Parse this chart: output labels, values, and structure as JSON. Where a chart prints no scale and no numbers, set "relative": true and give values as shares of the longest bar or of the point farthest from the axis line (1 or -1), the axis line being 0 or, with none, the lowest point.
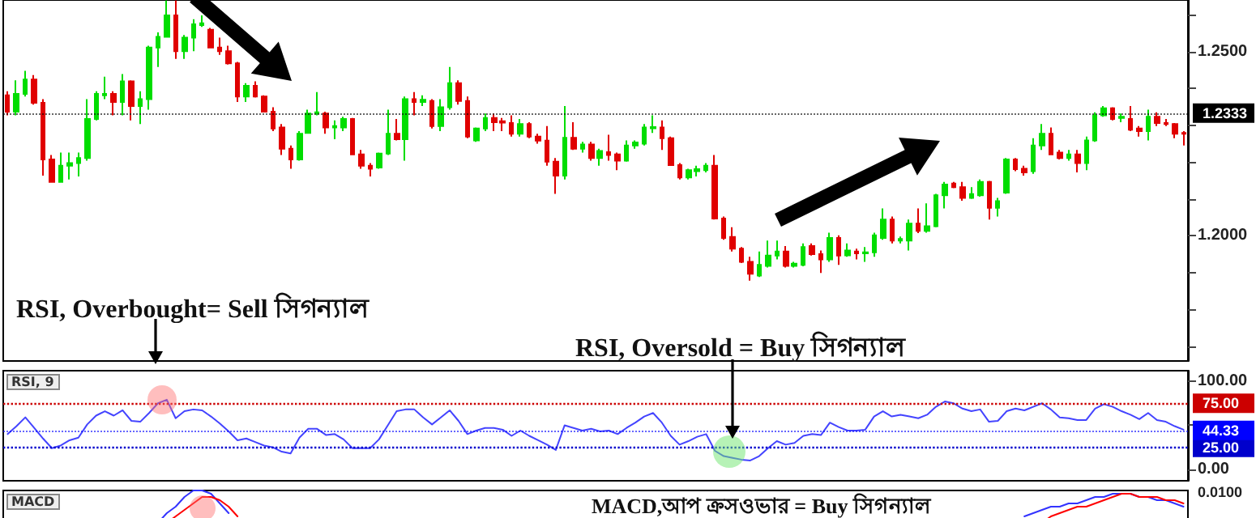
{
  "chart_data": [
    {
      "type": "candlestick",
      "categories": [
        null,
        null,
        null,
        null,
        null,
        null,
        null,
        null,
        null,
        null,
        null,
        null,
        null,
        null,
        null,
        null,
        null,
        null,
        null,
        null,
        null,
        null,
        null,
        null,
        null,
        null,
        null,
        null,
        null,
        null,
        null,
        null,
        null,
        null,
        null,
        null,
        null,
        null,
        null,
        null,
        null,
        null,
        null,
        null,
        null,
        null,
        null,
        null,
        null,
        null,
        null,
        null,
        null,
        null,
        null,
        null,
        null,
        null,
        null,
        null,
        null,
        null,
        null,
        null,
        null,
        null,
        null,
        null,
        null,
        null,
        null,
        null,
        null,
        null,
        null,
        null,
        null,
        null,
        null,
        null,
        null,
        null,
        null,
        null,
        null,
        null,
        null,
        null,
        null,
        null,
        null,
        null,
        null,
        null,
        null,
        null,
        null,
        null,
        null,
        null,
        null,
        null,
        null,
        null,
        null,
        null,
        null,
        null,
        null,
        null,
        null,
        null,
        null,
        null,
        null,
        null,
        null,
        null,
        null,
        null,
        null,
        null,
        null,
        null,
        null,
        null,
        null,
        null,
        null,
        null,
        null,
        null,
        null,
        null
      ],
      "colors": [
        "#e00000",
        "#00dd00",
        "#00dd00",
        "#e00000",
        "#e00000",
        "#e00000",
        "#00dd00",
        "#00dd00",
        "#00dd00",
        "#00dd00",
        "#00dd00",
        "#00dd00",
        "#e00000",
        "#00dd00",
        "#e00000",
        "#00dd00",
        "#00dd00",
        "#00dd00",
        "#00dd00",
        "#e00000",
        "#00dd00",
        "#00dd00",
        "#00dd00",
        "#e00000",
        "#e00000",
        "#e00000",
        "#e00000",
        "#00dd00",
        "#e00000",
        "#e00000",
        "#e00000",
        "#e00000",
        "#e00000",
        "#00dd00",
        "#00dd00",
        "#00dd00",
        "#e00000",
        "#00dd00",
        "#00dd00",
        "#e00000",
        "#e00000",
        "#e00000",
        "#00dd00",
        "#00dd00",
        "#e00000",
        "#00dd00",
        "#e00000",
        "#00dd00",
        "#e00000",
        "#00dd00",
        "#00dd00",
        "#e00000",
        "#e00000",
        "#00dd00",
        "#00dd00",
        "#e00000",
        "#e00000",
        "#e00000",
        "#00dd00",
        "#e00000",
        "#e00000",
        "#e00000",
        "#e00000",
        "#00dd00",
        "#e00000",
        "#00dd00",
        "#e00000",
        "#00dd00",
        "#e00000",
        "#e00000",
        "#00dd00",
        "#00dd00",
        "#00dd00",
        "#00dd00",
        "#e00000",
        "#e00000",
        "#e00000",
        "#00dd00",
        "#00dd00",
        "#00dd00",
        "#e00000",
        "#e00000",
        "#e00000",
        "#e00000",
        "#e00000",
        "#00dd00",
        "#00dd00",
        "#00dd00",
        "#e00000",
        "#00dd00",
        "#00dd00",
        "#e00000",
        "#e00000",
        "#00dd00",
        "#e00000",
        "#00dd00",
        "#e00000",
        "#00dd00",
        "#00dd00",
        "#00dd00",
        "#e00000",
        "#00dd00",
        "#00dd00",
        "#e00000",
        "#00dd00",
        "#00dd00",
        "#00dd00",
        "#e00000",
        "#e00000",
        "#00dd00",
        "#00dd00",
        "#e00000",
        "#00dd00",
        "#00dd00",
        "#e00000",
        "#e00000",
        "#00dd00",
        "#00dd00",
        "#e00000",
        "#e00000",
        "#00dd00",
        "#e00000",
        "#00dd00",
        "#00dd00",
        "#00dd00",
        "#e00000",
        "#00dd00",
        "#e00000",
        "#e00000",
        "#00dd00",
        "#e00000",
        "#e00000",
        "#e00000",
        "#e00000"
      ],
      "ohlc": [
        [
          1.2381,
          1.2392,
          1.2327,
          1.2337
        ],
        [
          1.2337,
          1.2422,
          1.2327,
          1.2385
        ],
        [
          1.2385,
          1.2448,
          1.2378,
          1.2424
        ],
        [
          1.2424,
          1.2436,
          1.2356,
          1.2361
        ],
        [
          1.2361,
          1.2371,
          1.2163,
          1.2207
        ],
        [
          1.2207,
          1.2219,
          1.2146,
          1.2146
        ],
        [
          1.2146,
          1.2226,
          1.2146,
          1.219
        ],
        [
          1.219,
          1.2226,
          1.2153,
          1.2197
        ],
        [
          1.2197,
          1.2226,
          1.2161,
          1.2211
        ],
        [
          1.2211,
          1.2371,
          1.2204,
          1.2317
        ],
        [
          1.2317,
          1.2392,
          1.2313,
          1.2385
        ],
        [
          1.2381,
          1.2432,
          1.2371,
          1.2385
        ],
        [
          1.2385,
          1.2392,
          1.2327,
          1.2363
        ],
        [
          1.2363,
          1.2439,
          1.2327,
          1.2419
        ],
        [
          1.2419,
          1.2422,
          1.2313,
          1.2352
        ],
        [
          1.2352,
          1.2392,
          1.2303,
          1.2371
        ],
        [
          1.2371,
          1.2516,
          1.2342,
          1.2511
        ],
        [
          1.2511,
          1.2552,
          1.2458,
          1.254
        ],
        [
          1.254,
          1.2639,
          1.2538,
          1.2598
        ],
        [
          1.2598,
          1.2639,
          1.248,
          1.2501
        ],
        [
          1.2501,
          1.2545,
          1.248,
          1.2538
        ],
        [
          1.2538,
          1.2588,
          1.2501,
          1.2574
        ],
        [
          1.2572,
          1.2598,
          1.2567,
          1.2577
        ],
        [
          1.2559,
          1.2564,
          1.2509,
          1.2511
        ],
        [
          1.2511,
          1.2538,
          1.2491,
          1.2501
        ],
        [
          1.2501,
          1.2516,
          1.2465,
          1.2468
        ],
        [
          1.2468,
          1.2472,
          1.2363,
          1.2378
        ],
        [
          1.2378,
          1.2414,
          1.2363,
          1.2407
        ],
        [
          1.2407,
          1.2419,
          1.2375,
          1.2378
        ],
        [
          1.2378,
          1.2381,
          1.2335,
          1.2337
        ],
        [
          1.2337,
          1.2349,
          1.2284,
          1.2291
        ],
        [
          1.2294,
          1.2303,
          1.2219,
          1.2236
        ],
        [
          1.2236,
          1.2245,
          1.2182,
          1.2207
        ],
        [
          1.2207,
          1.2284,
          1.2204,
          1.2277
        ],
        [
          1.2279,
          1.2342,
          1.2277,
          1.2332
        ],
        [
          1.2332,
          1.239,
          1.2327,
          1.2335
        ],
        [
          1.2332,
          1.2337,
          1.2277,
          1.2294
        ],
        [
          1.2294,
          1.2313,
          1.2262,
          1.2298
        ],
        [
          1.2294,
          1.2323,
          1.2284,
          1.2317
        ],
        [
          1.2317,
          1.232,
          1.2219,
          1.2221
        ],
        [
          1.2221,
          1.2233,
          1.2182,
          1.219
        ],
        [
          1.219,
          1.2197,
          1.2161,
          1.2182
        ],
        [
          1.2185,
          1.2226,
          1.2182,
          1.2223
        ],
        [
          1.2223,
          1.2342,
          1.2219,
          1.2277
        ],
        [
          1.2277,
          1.2317,
          1.2259,
          1.2262
        ],
        [
          1.2262,
          1.2378,
          1.2204,
          1.2371
        ],
        [
          1.2371,
          1.239,
          1.2327,
          1.2363
        ],
        [
          1.2363,
          1.2381,
          1.2352,
          1.2369
        ],
        [
          1.2366,
          1.2371,
          1.2291,
          1.2298
        ],
        [
          1.2298,
          1.2371,
          1.2284,
          1.2349
        ],
        [
          1.2349,
          1.2458,
          1.2342,
          1.2414
        ],
        [
          1.2414,
          1.2422,
          1.2356,
          1.2366
        ],
        [
          1.2366,
          1.2378,
          1.2265,
          1.2269
        ],
        [
          1.2259,
          1.2294,
          1.2255,
          1.2291
        ],
        [
          1.2291,
          1.2332,
          1.2284,
          1.232
        ],
        [
          1.232,
          1.2332,
          1.2284,
          1.2308
        ],
        [
          1.2311,
          1.232,
          1.2284,
          1.2307
        ],
        [
          1.2306,
          1.2327,
          1.2269,
          1.2277
        ],
        [
          1.2277,
          1.2317,
          1.2269,
          1.2303
        ],
        [
          1.2303,
          1.2308,
          1.2265,
          1.2269
        ],
        [
          1.2269,
          1.2277,
          1.225,
          1.2258
        ],
        [
          1.2258,
          1.2298,
          1.219,
          1.2201
        ],
        [
          1.2201,
          1.2211,
          1.2114,
          1.2163
        ],
        [
          1.2163,
          1.2352,
          1.2153,
          1.2266
        ],
        [
          1.2266,
          1.2308,
          1.2233,
          1.2236
        ],
        [
          1.2236,
          1.2255,
          1.2226,
          1.2248
        ],
        [
          1.2248,
          1.2255,
          1.2204,
          1.2211
        ],
        [
          1.2211,
          1.2236,
          1.219,
          1.223
        ],
        [
          1.2227,
          1.2274,
          1.2204,
          1.2219
        ],
        [
          1.2221,
          1.2226,
          1.2178,
          1.2204
        ],
        [
          1.2204,
          1.2259,
          1.2201,
          1.2245
        ],
        [
          1.2245,
          1.2259,
          1.2236,
          1.2253
        ],
        [
          1.225,
          1.2303,
          1.2245,
          1.2294
        ],
        [
          1.2292,
          1.2327,
          1.2279,
          1.2295
        ],
        [
          1.2294,
          1.2313,
          1.2233,
          1.2265
        ],
        [
          1.2265,
          1.2269,
          1.219,
          1.2192
        ],
        [
          1.2192,
          1.2197,
          1.2153,
          1.2158
        ],
        [
          1.2158,
          1.2182,
          1.2153,
          1.2178
        ],
        [
          1.2175,
          1.219,
          1.2161,
          1.2181
        ],
        [
          1.2178,
          1.2197,
          1.2172,
          1.219
        ],
        [
          1.219,
          1.2219,
          1.2044,
          1.2047
        ],
        [
          1.2047,
          1.2052,
          1.1989,
          1.1994
        ],
        [
          1.1997,
          1.2023,
          1.1957,
          1.1965
        ],
        [
          1.1965,
          1.1969,
          1.1926,
          1.1929
        ],
        [
          1.1929,
          1.1943,
          1.1878,
          1.1897
        ],
        [
          1.1892,
          1.1957,
          1.1888,
          1.1921
        ],
        [
          1.1918,
          1.1987,
          1.1914,
          1.1946
        ],
        [
          1.1946,
          1.1987,
          1.1936,
          1.1957
        ],
        [
          1.1957,
          1.1972,
          1.1914,
          1.1918
        ],
        [
          1.1918,
          1.1929,
          1.1914,
          1.1924
        ],
        [
          1.1921,
          1.1979,
          1.1917,
          1.1969
        ],
        [
          1.1972,
          1.1979,
          1.1946,
          1.195
        ],
        [
          1.195,
          1.196,
          1.1899,
          1.1936
        ],
        [
          1.1936,
          1.2008,
          1.1929,
          1.1994
        ],
        [
          1.1994,
          1.2001,
          1.1921,
          1.1946
        ],
        [
          1.1947,
          1.1979,
          1.1943,
          1.196
        ],
        [
          1.1957,
          1.1965,
          1.1936,
          1.1952
        ],
        [
          1.1952,
          1.1969,
          1.1929,
          1.1955
        ],
        [
          1.1955,
          1.2008,
          1.1943,
          1.2001
        ],
        [
          1.1994,
          1.2074,
          1.1989,
          1.2044
        ],
        [
          1.2044,
          1.2052,
          1.1979,
          1.1987
        ],
        [
          1.1987,
          1.1998,
          1.1979,
          1.1991
        ],
        [
          1.1987,
          1.2044,
          1.196,
          1.2033
        ],
        [
          1.2033,
          1.2074,
          1.2007,
          1.2013
        ],
        [
          1.2013,
          1.2088,
          1.2008,
          1.2026
        ],
        [
          1.2026,
          1.2114,
          1.2023,
          1.211
        ],
        [
          1.211,
          1.2146,
          1.2074,
          1.2139
        ],
        [
          1.2142,
          1.2146,
          1.2129,
          1.2132
        ],
        [
          1.2132,
          1.2146,
          1.2095,
          1.2103
        ],
        [
          1.2103,
          1.2132,
          1.21,
          1.2113
        ],
        [
          1.211,
          1.2153,
          1.2106,
          1.2146
        ],
        [
          1.2146,
          1.2149,
          1.2044,
          1.2076
        ],
        [
          1.2076,
          1.2103,
          1.2052,
          1.2094
        ],
        [
          1.2117,
          1.2211,
          1.2114,
          1.2207
        ],
        [
          1.2207,
          1.2211,
          1.2175,
          1.2181
        ],
        [
          1.2182,
          1.219,
          1.2163,
          1.2172
        ],
        [
          1.2175,
          1.2265,
          1.2168,
          1.2245
        ],
        [
          1.2245,
          1.2303,
          1.2233,
          1.2277
        ],
        [
          1.2277,
          1.2294,
          1.2219,
          1.2221
        ],
        [
          1.2226,
          1.2233,
          1.2207,
          1.2211
        ],
        [
          1.2211,
          1.2233,
          1.2204,
          1.2221
        ],
        [
          1.2221,
          1.2233,
          1.2172,
          1.2197
        ],
        [
          1.2197,
          1.2269,
          1.2178,
          1.2259
        ],
        [
          1.2259,
          1.2335,
          1.2255,
          1.2327
        ],
        [
          1.2327,
          1.2352,
          1.2323,
          1.2346
        ],
        [
          1.2346,
          1.2349,
          1.2313,
          1.2317
        ],
        [
          1.232,
          1.2332,
          1.2308,
          1.2323
        ],
        [
          1.2317,
          1.2352,
          1.2284,
          1.2288
        ],
        [
          1.2291,
          1.2298,
          1.2269,
          1.2284
        ],
        [
          1.2284,
          1.2342,
          1.2259,
          1.2323
        ],
        [
          1.2323,
          1.2335,
          1.2298,
          1.2306
        ],
        [
          1.2306,
          1.2317,
          1.2298,
          1.2303
        ],
        [
          1.2303,
          1.2306,
          1.2265,
          1.2277
        ],
        [
          1.2279,
          1.2284,
          1.2245,
          1.2277
        ]
      ],
      "ylim": [
        1.166,
        1.264
      ],
      "yticks": [
        {
          "value": 1.17,
          "label": null
        },
        {
          "value": 1.18,
          "label": null
        },
        {
          "value": 1.19,
          "label": null
        },
        {
          "value": 1.2,
          "label": "1.2000"
        },
        {
          "value": 1.21,
          "label": null
        },
        {
          "value": 1.22,
          "label": null
        },
        {
          "value": 1.23,
          "label": null
        },
        {
          "value": 1.24,
          "label": null
        },
        {
          "value": 1.25,
          "label": "1.2500"
        },
        {
          "value": 1.26,
          "label": null
        }
      ],
      "ref_lines": [
        {
          "axis": "y",
          "value": 1.2333,
          "label": "1.2333",
          "color": "#000000"
        }
      ],
      "annotations": [
        "RSI, Overbought= Sell সিগন্যাল",
        "RSI, Oversold = Buy সিগন্যাল"
      ]
    },
    {
      "type": "line",
      "title": "RSI, 9",
      "categories": [
        null,
        null,
        null,
        null,
        null,
        null,
        null,
        null,
        null,
        null,
        null,
        null,
        null,
        null,
        null,
        null,
        null,
        null,
        null,
        null,
        null,
        null,
        null,
        null,
        null,
        null,
        null,
        null,
        null,
        null,
        null,
        null,
        null,
        null,
        null,
        null,
        null,
        null,
        null,
        null,
        null,
        null,
        null,
        null,
        null,
        null,
        null,
        null,
        null,
        null,
        null,
        null,
        null,
        null,
        null,
        null,
        null,
        null,
        null,
        null,
        null,
        null,
        null,
        null,
        null,
        null,
        null,
        null,
        null,
        null,
        null,
        null,
        null,
        null,
        null,
        null,
        null,
        null,
        null,
        null,
        null,
        null,
        null,
        null,
        null,
        null,
        null,
        null,
        null,
        null,
        null,
        null,
        null,
        null,
        null,
        null,
        null,
        null,
        null,
        null,
        null,
        null,
        null,
        null,
        null,
        null,
        null,
        null,
        null,
        null,
        null,
        null,
        null,
        null,
        null,
        null,
        null,
        null,
        null,
        null,
        null,
        null,
        null,
        null,
        null,
        null,
        null,
        null,
        null,
        null,
        null,
        null,
        null,
        null
      ],
      "series": [
        {
          "color": "#4444ff",
          "values": [
            40,
            49,
            59,
            47,
            35,
            24,
            27,
            33,
            36,
            51,
            61,
            66,
            61,
            67,
            55,
            54,
            64,
            75,
            79,
            58,
            66,
            68,
            67,
            60,
            52,
            43,
            33,
            35,
            31,
            27,
            25,
            20,
            18,
            36,
            46,
            46,
            39,
            40,
            34,
            24,
            24,
            24,
            34,
            50,
            66,
            68,
            68,
            59,
            51,
            59,
            67,
            55,
            40,
            44,
            47,
            47,
            45,
            38,
            44,
            38,
            33,
            28,
            22,
            50,
            47,
            44,
            46,
            43,
            44,
            40,
            47,
            53,
            60,
            64,
            53,
            38,
            28,
            32,
            37,
            40,
            21,
            15,
            13,
            11,
            10,
            15,
            24,
            32,
            28,
            30,
            38,
            40,
            39,
            53,
            48,
            44,
            44,
            45,
            60,
            66,
            60,
            62,
            60,
            58,
            62,
            71,
            77,
            75,
            69,
            66,
            68,
            54,
            55,
            66,
            69,
            67,
            71,
            75,
            68,
            59,
            58,
            56,
            56,
            69,
            74,
            71,
            66,
            62,
            57,
            64,
            56,
            54,
            49,
            45
          ]
        }
      ],
      "ylim": [
        -13,
        112
      ],
      "yticks": [
        {
          "value": 0,
          "label": "0.00"
        },
        {
          "value": 50,
          "label": null
        },
        {
          "value": 100,
          "label": "100.00"
        }
      ],
      "ref_lines": [
        {
          "axis": "y",
          "value": 75,
          "label": "75.00",
          "color": "#cc0000",
          "line_style": "dotted"
        },
        {
          "axis": "y",
          "value": 25,
          "label": "25.00",
          "color": "#0000cc",
          "line_style": "dotted"
        },
        {
          "axis": "y",
          "value": 44.33,
          "label": "44.33",
          "color": "#0000ff"
        }
      ]
    },
    {
      "type": "line",
      "title": "MACD",
      "relative": true,
      "categories": [
        null,
        null,
        null,
        null,
        null,
        null,
        null,
        null,
        null,
        null,
        null,
        null,
        null,
        null,
        null,
        null,
        null,
        null,
        null,
        null,
        null,
        null,
        null,
        null,
        null,
        null,
        null,
        null,
        null,
        null,
        null,
        null,
        null,
        null,
        null,
        null,
        null,
        null,
        null,
        null,
        null,
        null,
        null,
        null,
        null,
        null,
        null,
        null,
        null,
        null,
        null,
        null,
        null,
        null,
        null,
        null,
        null,
        null,
        null,
        null,
        null,
        null,
        null,
        null,
        null,
        null,
        null,
        null,
        null,
        null,
        null,
        null,
        null,
        null,
        null,
        null,
        null,
        null,
        null,
        null,
        null,
        null,
        null,
        null,
        null,
        null,
        null,
        null,
        null,
        null,
        null,
        null,
        null,
        null,
        null,
        null,
        null,
        null,
        null,
        null,
        null,
        null,
        null,
        null,
        null,
        null,
        null,
        null,
        null,
        null,
        null,
        null,
        null,
        null,
        null,
        null,
        null,
        null,
        null,
        null,
        null,
        null,
        null,
        null,
        null,
        null,
        null,
        null,
        null,
        null,
        null,
        null,
        null,
        null
      ],
      "series": [
        {
          "color": "#3333ff",
          "values": [
            null,
            null,
            null,
            null,
            null,
            null,
            null,
            null,
            null,
            null,
            null,
            null,
            null,
            null,
            null,
            null,
            null,
            0,
            0.3,
            0.5,
            0.8,
            1,
            1,
            0.9,
            0.6,
            0.3,
            null,
            null,
            null,
            null,
            null,
            null,
            null,
            null,
            null,
            null,
            null,
            null,
            null,
            null,
            null,
            null,
            null,
            null,
            null,
            null,
            null,
            null,
            null,
            null,
            null,
            null,
            null,
            null,
            null,
            null,
            null,
            null,
            null,
            null,
            null,
            null,
            null,
            null,
            null,
            null,
            null,
            null,
            null,
            null,
            null,
            null,
            null,
            null,
            null,
            null,
            null,
            null,
            null,
            null,
            null,
            null,
            null,
            null,
            null,
            null,
            null,
            null,
            null,
            null,
            null,
            null,
            null,
            null,
            null,
            null,
            null,
            null,
            null,
            null,
            null,
            null,
            null,
            null,
            null,
            null,
            null,
            null,
            null,
            null,
            null,
            null,
            null,
            null,
            null,
            0.2,
            0.3,
            0.4,
            0.5,
            0.5,
            0.6,
            0.6,
            0.7,
            0.8,
            0.8,
            0.9,
            0.9,
            0.9,
            0.8,
            0.8,
            0.7,
            0.7,
            0.6,
            0.5
          ]
        },
        {
          "color": "#ff0000",
          "values": [
            null,
            null,
            null,
            null,
            null,
            null,
            null,
            null,
            null,
            null,
            null,
            null,
            null,
            null,
            null,
            null,
            null,
            null,
            0,
            0.2,
            0.4,
            0.6,
            0.8,
            0.8,
            0.7,
            0.5,
            0.2,
            null,
            null,
            null,
            null,
            null,
            null,
            null,
            null,
            null,
            null,
            null,
            null,
            null,
            null,
            null,
            null,
            null,
            null,
            null,
            null,
            null,
            null,
            null,
            null,
            null,
            null,
            null,
            null,
            null,
            null,
            null,
            null,
            null,
            null,
            null,
            null,
            null,
            null,
            null,
            null,
            null,
            null,
            null,
            null,
            null,
            null,
            null,
            null,
            null,
            null,
            null,
            null,
            null,
            null,
            null,
            null,
            null,
            null,
            null,
            null,
            null,
            null,
            null,
            null,
            null,
            null,
            null,
            null,
            null,
            null,
            null,
            null,
            null,
            null,
            null,
            null,
            null,
            null,
            null,
            null,
            null,
            null,
            null,
            null,
            null,
            null,
            null,
            null,
            null,
            null,
            0,
            0.2,
            0.3,
            0.4,
            0.5,
            0.5,
            0.6,
            0.7,
            0.8,
            0.9,
            0.9,
            0.8,
            0.8,
            0.8,
            0.7,
            0.7,
            0.6
          ]
        }
      ],
      "annotations": [
        "MACD,আপ ক্রসওভার = Buy সিগন্যাল",
        "0.0100"
      ]
    }
  ]
}
